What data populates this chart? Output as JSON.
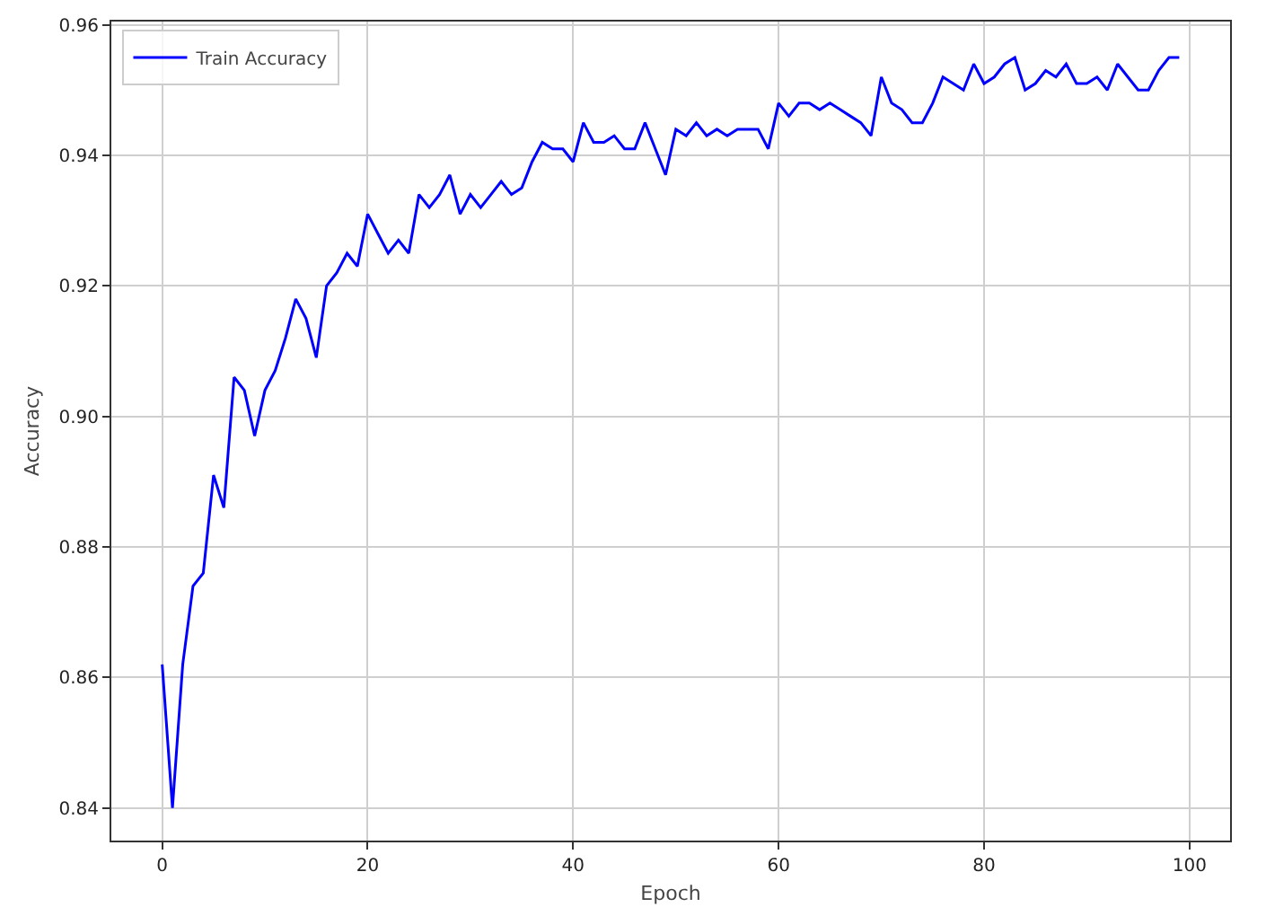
{
  "chart_data": {
    "type": "line",
    "xlabel": "Epoch",
    "ylabel": "Accuracy",
    "x": [
      0,
      1,
      2,
      3,
      4,
      5,
      6,
      7,
      8,
      9,
      10,
      11,
      12,
      13,
      14,
      15,
      16,
      17,
      18,
      19,
      20,
      21,
      22,
      23,
      24,
      25,
      26,
      27,
      28,
      29,
      30,
      31,
      32,
      33,
      34,
      35,
      36,
      37,
      38,
      39,
      40,
      41,
      42,
      43,
      44,
      45,
      46,
      47,
      48,
      49,
      50,
      51,
      52,
      53,
      54,
      55,
      56,
      57,
      58,
      59,
      60,
      61,
      62,
      63,
      64,
      65,
      66,
      67,
      68,
      69,
      70,
      71,
      72,
      73,
      74,
      75,
      76,
      77,
      78,
      79,
      80,
      81,
      82,
      83,
      84,
      85,
      86,
      87,
      88,
      89,
      90,
      91,
      92,
      93,
      94,
      95,
      96,
      97,
      98,
      99
    ],
    "series": [
      {
        "name": "Train Accuracy",
        "color": "#0000ff",
        "values": [
          0.862,
          0.84,
          0.862,
          0.874,
          0.876,
          0.891,
          0.886,
          0.906,
          0.904,
          0.897,
          0.904,
          0.907,
          0.912,
          0.918,
          0.915,
          0.909,
          0.92,
          0.922,
          0.925,
          0.923,
          0.931,
          0.928,
          0.925,
          0.927,
          0.925,
          0.934,
          0.932,
          0.934,
          0.937,
          0.931,
          0.934,
          0.932,
          0.934,
          0.936,
          0.934,
          0.935,
          0.939,
          0.942,
          0.941,
          0.941,
          0.939,
          0.945,
          0.942,
          0.942,
          0.943,
          0.941,
          0.941,
          0.945,
          0.941,
          0.937,
          0.944,
          0.943,
          0.945,
          0.943,
          0.944,
          0.943,
          0.944,
          0.944,
          0.944,
          0.941,
          0.948,
          0.946,
          0.948,
          0.948,
          0.947,
          0.948,
          0.947,
          0.946,
          0.945,
          0.943,
          0.952,
          0.948,
          0.947,
          0.945,
          0.945,
          0.948,
          0.952,
          0.951,
          0.95,
          0.954,
          0.951,
          0.952,
          0.954,
          0.955,
          0.95,
          0.951,
          0.953,
          0.952,
          0.954,
          0.951,
          0.951,
          0.952,
          0.95,
          0.954,
          0.952,
          0.95,
          0.95,
          0.953,
          0.955,
          0.955
        ]
      }
    ],
    "xlim": [
      -4.95,
      103.95
    ],
    "xticks": [
      0,
      20,
      40,
      60,
      80,
      100
    ],
    "ylim": [
      0.835,
      0.9605
    ],
    "yticks": [
      0.84,
      0.86,
      0.88,
      {
        "value": 0.9,
        "label": "0.90"
      },
      0.92,
      0.94,
      0.96
    ],
    "grid": true,
    "legend": "top left"
  }
}
